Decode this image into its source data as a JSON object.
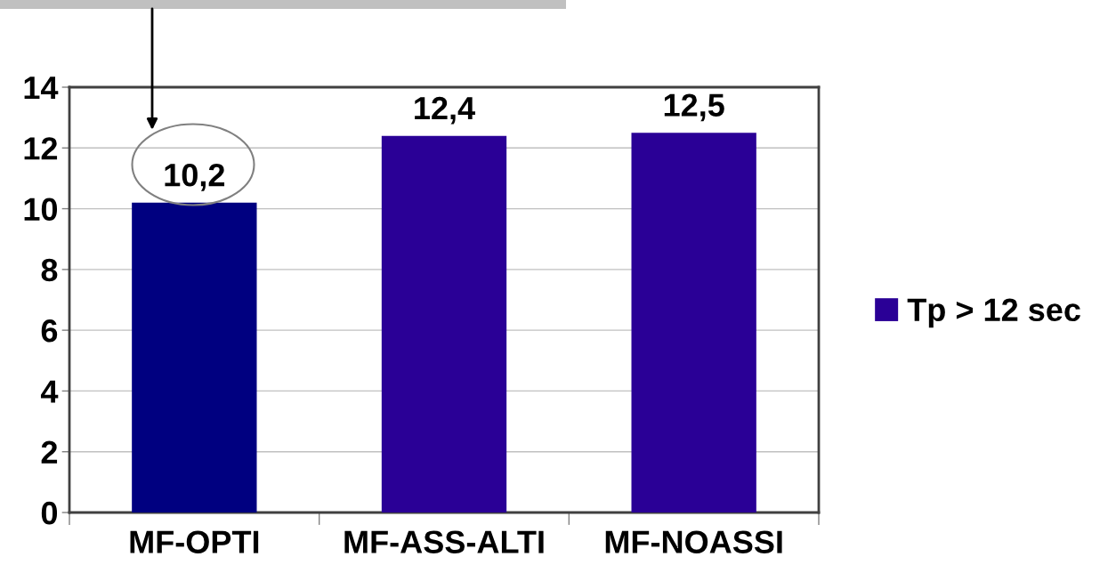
{
  "chart_data": {
    "type": "bar",
    "categories": [
      "MF-OPTI",
      "MF-ASS-ALTI",
      "MF-NOASSI"
    ],
    "series": [
      {
        "name": "Tp > 12 sec",
        "color": "#2a0096",
        "colors": [
          "#000080",
          "#2a0096",
          "#2a0096"
        ],
        "values": [
          10.2,
          12.4,
          12.5
        ],
        "value_labels": [
          "10,2",
          "12,4",
          "12,5"
        ]
      }
    ],
    "ylim": [
      0,
      14
    ],
    "yticks": [
      0,
      2,
      4,
      6,
      8,
      10,
      12,
      14
    ],
    "grid": "y",
    "legend": "right"
  }
}
